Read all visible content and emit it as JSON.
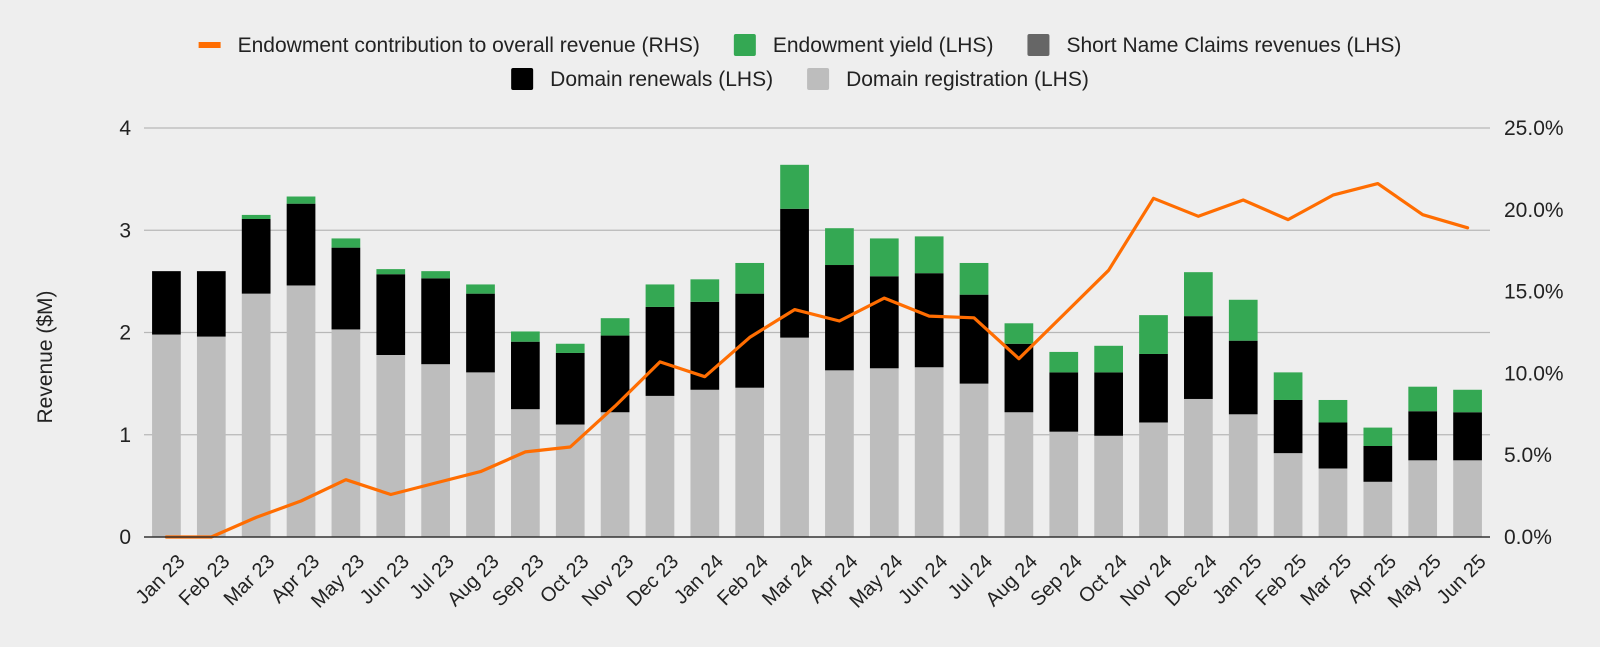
{
  "chart_data": {
    "type": "bar",
    "stacked": true,
    "title": "",
    "ylabel": "Revenue ($M)",
    "ylim": [
      0,
      4
    ],
    "y_ticks": [
      "0",
      "1",
      "2",
      "3",
      "4"
    ],
    "y2lim": [
      0,
      25
    ],
    "y2_ticks": [
      "0.0%",
      "5.0%",
      "10.0%",
      "15.0%",
      "20.0%",
      "25.0%"
    ],
    "grid": true,
    "legend_position": "top",
    "categories": [
      "Jan 23",
      "Feb 23",
      "Mar 23",
      "Apr 23",
      "May 23",
      "Jun 23",
      "Jul 23",
      "Aug 23",
      "Sep 23",
      "Oct 23",
      "Nov 23",
      "Dec 23",
      "Jan 24",
      "Feb 24",
      "Mar 24",
      "Apr 24",
      "May 24",
      "Jun 24",
      "Jul 24",
      "Aug 24",
      "Sep 24",
      "Oct 24",
      "Nov 24",
      "Dec 24",
      "Jan 25",
      "Feb 25",
      "Mar 25",
      "Apr 25",
      "May 25",
      "Jun 25"
    ],
    "legend": [
      {
        "name": "Endowment contribution to overall revenue (RHS)",
        "color": "#ff6d01",
        "kind": "line"
      },
      {
        "name": "Endowment yield (LHS)",
        "color": "#34a853",
        "kind": "box"
      },
      {
        "name": "Short Name Claims revenues (LHS)",
        "color": "#666666",
        "kind": "box"
      },
      {
        "name": "Domain renewals (LHS)",
        "color": "#000000",
        "kind": "box"
      },
      {
        "name": "Domain registration (LHS)",
        "color": "#bdbdbd",
        "kind": "box"
      }
    ],
    "bar_series": [
      {
        "name": "Domain registration (LHS)",
        "color": "#bdbdbd",
        "values": [
          1.98,
          1.96,
          2.38,
          2.46,
          2.03,
          1.78,
          1.69,
          1.61,
          1.25,
          1.1,
          1.22,
          1.38,
          1.44,
          1.46,
          1.95,
          1.63,
          1.65,
          1.66,
          1.5,
          1.22,
          1.03,
          0.99,
          1.12,
          1.35,
          1.2,
          0.82,
          0.67,
          0.54,
          0.75,
          0.75
        ]
      },
      {
        "name": "Domain renewals (LHS)",
        "color": "#000000",
        "values": [
          0.62,
          0.64,
          0.73,
          0.8,
          0.8,
          0.79,
          0.84,
          0.77,
          0.66,
          0.7,
          0.75,
          0.87,
          0.86,
          0.92,
          1.26,
          1.03,
          0.9,
          0.92,
          0.87,
          0.67,
          0.58,
          0.62,
          0.67,
          0.81,
          0.72,
          0.52,
          0.45,
          0.35,
          0.48,
          0.47
        ]
      },
      {
        "name": "Short Name Claims revenues (LHS)",
        "color": "#666666",
        "values": [
          0,
          0,
          0,
          0,
          0,
          0,
          0,
          0,
          0,
          0,
          0,
          0,
          0,
          0,
          0,
          0,
          0,
          0,
          0,
          0,
          0,
          0,
          0,
          0,
          0,
          0,
          0,
          0,
          0,
          0
        ]
      },
      {
        "name": "Endowment yield (LHS)",
        "color": "#34a853",
        "values": [
          0,
          0,
          0.04,
          0.07,
          0.09,
          0.05,
          0.07,
          0.09,
          0.1,
          0.09,
          0.17,
          0.22,
          0.22,
          0.3,
          0.43,
          0.36,
          0.37,
          0.36,
          0.31,
          0.2,
          0.2,
          0.26,
          0.38,
          0.43,
          0.4,
          0.27,
          0.22,
          0.18,
          0.24,
          0.22
        ]
      }
    ],
    "line_series": [
      {
        "name": "Endowment contribution to overall revenue (RHS)",
        "color": "#ff6d01",
        "axis": "right",
        "values": [
          0.0,
          0.0,
          1.2,
          2.2,
          3.5,
          2.6,
          3.3,
          4.0,
          5.2,
          5.5,
          8.0,
          10.7,
          9.8,
          12.2,
          13.9,
          13.2,
          14.6,
          13.5,
          13.4,
          10.9,
          13.6,
          16.3,
          20.7,
          19.6,
          20.6,
          19.4,
          20.9,
          21.6,
          19.7,
          18.9
        ]
      }
    ]
  }
}
